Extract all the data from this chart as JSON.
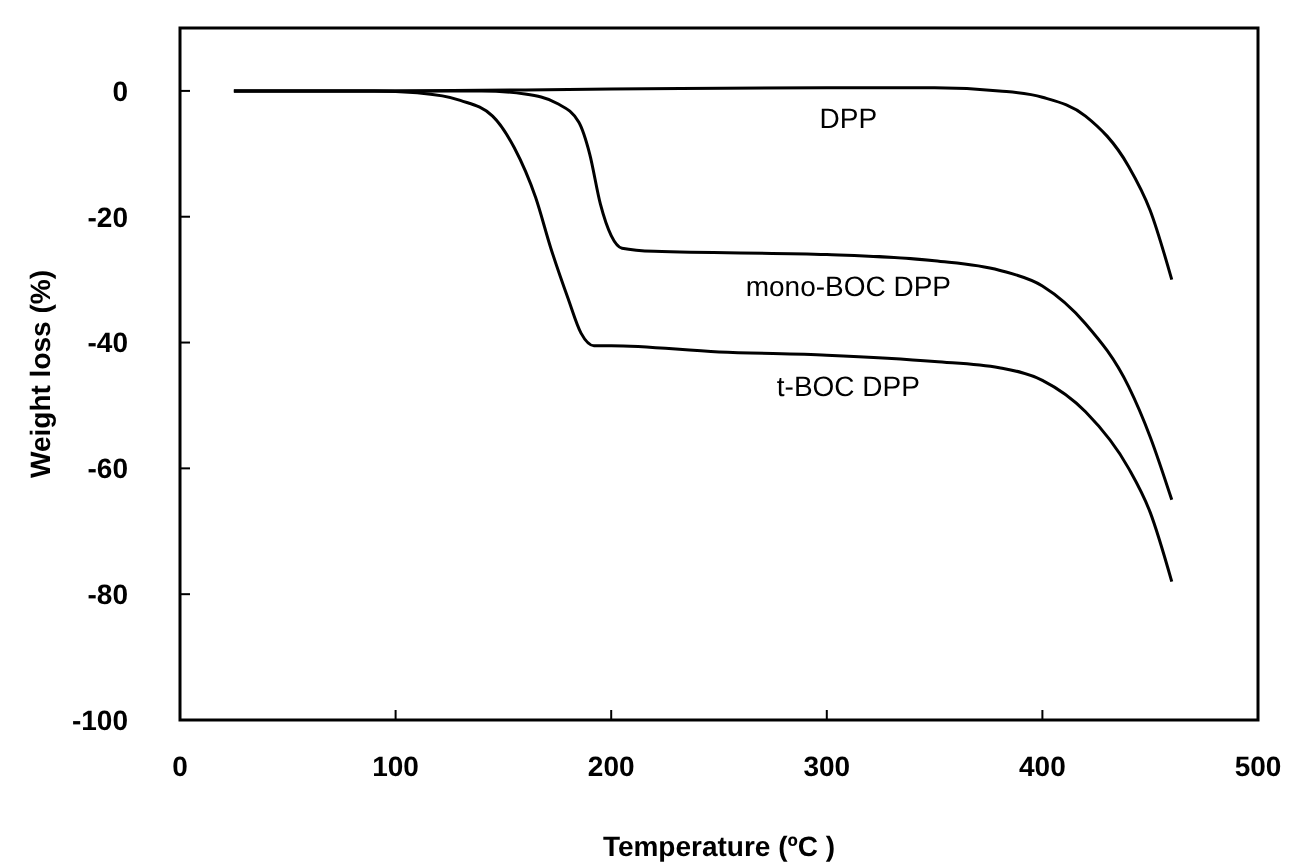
{
  "chart_data": {
    "type": "line",
    "xlabel": "Temperature (ºC )",
    "ylabel": "Weight loss (%)",
    "xlim": [
      0,
      500
    ],
    "ylim": [
      -100,
      10
    ],
    "xticks": [
      0,
      100,
      200,
      300,
      400,
      500
    ],
    "yticks": [
      0,
      -20,
      -40,
      -60,
      -80,
      -100
    ],
    "grid": false,
    "marker": "none",
    "line_style": "solid",
    "series": [
      {
        "name": "DPP",
        "color": "#000000",
        "x": [
          25,
          100,
          200,
          300,
          350,
          380,
          400,
          420,
          440,
          450,
          460
        ],
        "values": [
          0,
          0,
          0.3,
          0.5,
          0.5,
          0,
          -1,
          -4,
          -12,
          -19,
          -30
        ]
      },
      {
        "name": "mono-BOC DPP",
        "color": "#000000",
        "x": [
          25,
          100,
          140,
          160,
          175,
          185,
          190,
          195,
          200,
          205,
          220,
          300,
          350,
          380,
          400,
          420,
          440,
          450,
          460
        ],
        "values": [
          0,
          0,
          0,
          -0.5,
          -2,
          -5,
          -10,
          -18,
          -23,
          -25,
          -25.5,
          -26,
          -27,
          -28.5,
          -31,
          -37,
          -47,
          -55,
          -65
        ]
      },
      {
        "name": "t-BOC DPP",
        "color": "#000000",
        "x": [
          25,
          90,
          110,
          130,
          145,
          155,
          165,
          172,
          180,
          186,
          192,
          200,
          250,
          300,
          350,
          380,
          400,
          420,
          440,
          450,
          460
        ],
        "values": [
          0,
          0,
          -0.3,
          -1.5,
          -4,
          -9,
          -17,
          -25,
          -33,
          -38.5,
          -40.5,
          -40.5,
          -41.5,
          -42,
          -43,
          -44,
          -46,
          -51,
          -60,
          -67,
          -78
        ]
      }
    ]
  }
}
